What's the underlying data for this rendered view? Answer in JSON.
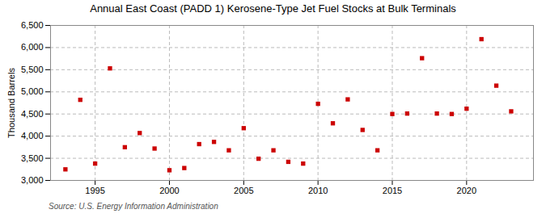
{
  "chart_data": {
    "type": "scatter",
    "title": "Annual East Coast (PADD 1) Kerosene-Type Jet Fuel Stocks at Bulk Terminals",
    "ylabel": "Thousand Barrels",
    "source": "Source: U.S. Energy Information Administration",
    "x": [
      1993,
      1994,
      1995,
      1996,
      1997,
      1998,
      1999,
      2000,
      2001,
      2002,
      2003,
      2004,
      2005,
      2006,
      2007,
      2008,
      2009,
      2010,
      2011,
      2012,
      2013,
      2014,
      2015,
      2016,
      2017,
      2018,
      2019,
      2020,
      2021,
      2022,
      2023
    ],
    "values": [
      3250,
      4820,
      3380,
      5530,
      3750,
      4070,
      3720,
      3230,
      3280,
      3820,
      3870,
      3680,
      4180,
      3490,
      3680,
      3420,
      3380,
      4730,
      4290,
      4830,
      4140,
      3680,
      4500,
      4510,
      5760,
      4510,
      4500,
      4620,
      6190,
      5140,
      4560
    ],
    "color": "#cc0000",
    "marker": "square",
    "xlim": [
      1992.0,
      2024.5
    ],
    "xticks": [
      1995,
      2000,
      2005,
      2010,
      2015,
      2020
    ],
    "ylim": [
      3000,
      6500
    ],
    "yticks": [
      {
        "value": 3000,
        "label": "3,000"
      },
      {
        "value": 3500,
        "label": "3,500"
      },
      {
        "value": 4000,
        "label": "4,000"
      },
      {
        "value": 4500,
        "label": "4,500"
      },
      {
        "value": 5000,
        "label": "5,000"
      },
      {
        "value": 5500,
        "label": "5,500"
      },
      {
        "value": 6000,
        "label": "6,000"
      },
      {
        "value": 6500,
        "label": "6,500"
      }
    ],
    "grid": true
  }
}
